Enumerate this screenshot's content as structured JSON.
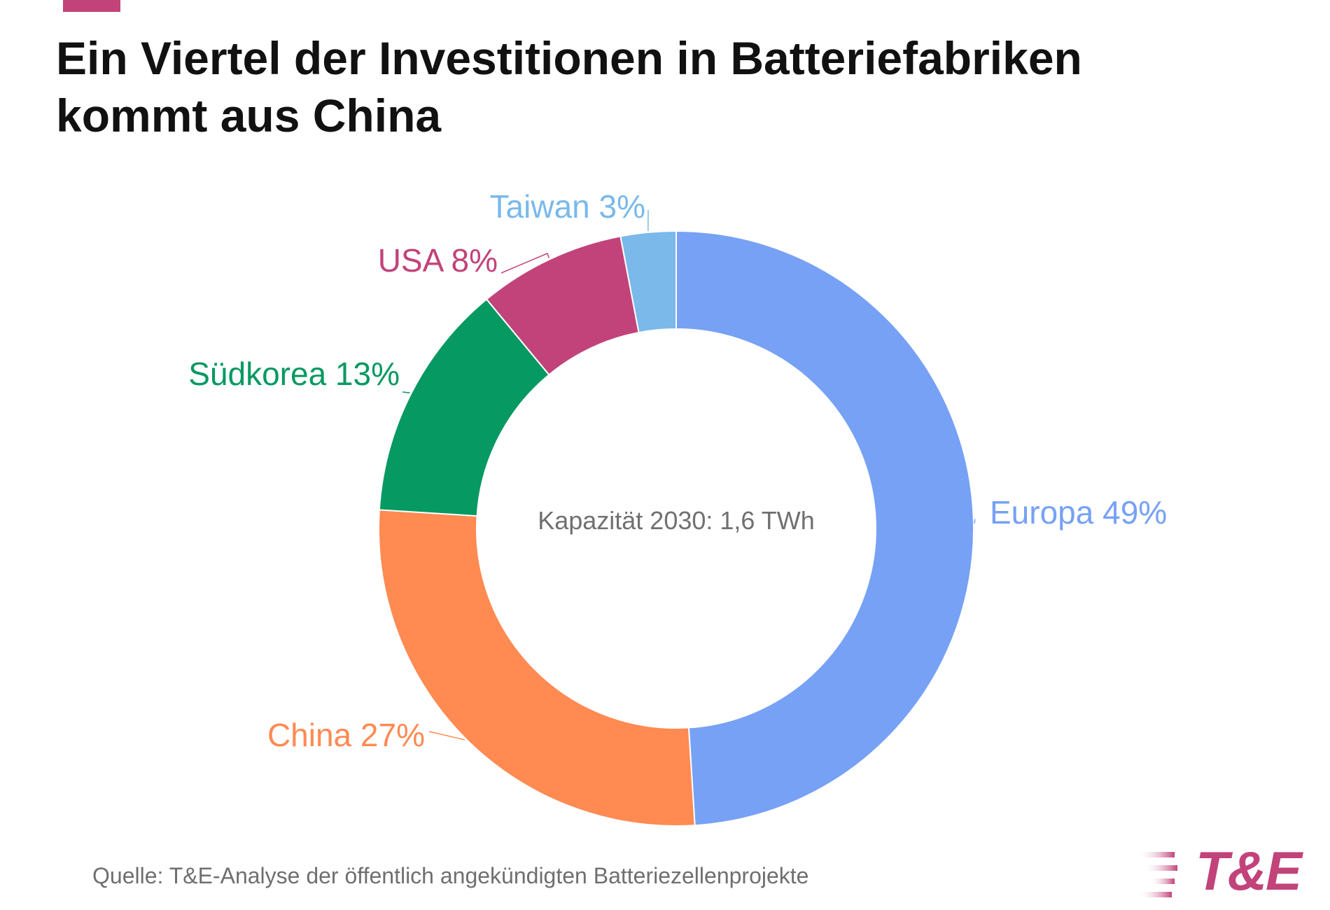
{
  "title": {
    "line1": "Ein Viertel der Investitionen in Batteriefabriken",
    "line2": "kommt aus China"
  },
  "colors": {
    "accent": "#c2437a",
    "europa": "#76a1f5",
    "china": "#ff8a52",
    "suedkorea": "#069962",
    "usa": "#c2437a",
    "taiwan": "#7ab9ea"
  },
  "chart_data": {
    "type": "pie",
    "variant": "donut",
    "title": "Ein Viertel der Investitionen in Batteriefabriken kommt aus China",
    "center_label": "Kapazität 2030: 1,6 TWh",
    "slices": [
      {
        "name": "Europa",
        "value": 49,
        "label": "Europa 49%",
        "color": "#76a1f5"
      },
      {
        "name": "China",
        "value": 27,
        "label": "China 27%",
        "color": "#ff8a52"
      },
      {
        "name": "Südkorea",
        "value": 13,
        "label": "Südkorea 13%",
        "color": "#069962"
      },
      {
        "name": "USA",
        "value": 8,
        "label": "USA 8%",
        "color": "#c2437a"
      },
      {
        "name": "Taiwan",
        "value": 3,
        "label": "Taiwan 3%",
        "color": "#7ab9ea"
      }
    ],
    "unit": "%"
  },
  "source": "Quelle: T&E-Analyse der öffentlich angekündigten Batteriezellenprojekte",
  "logo": {
    "text": "T&E",
    "color": "#c2437a"
  }
}
